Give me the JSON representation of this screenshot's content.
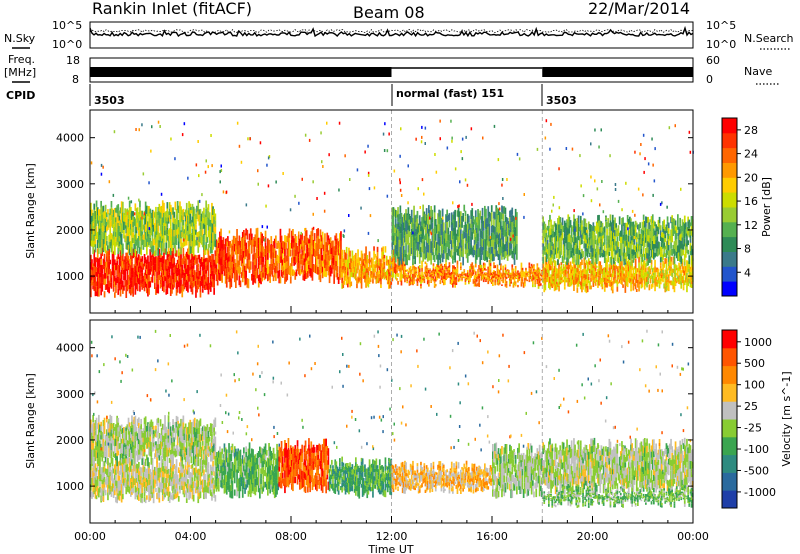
{
  "header": {
    "station": "Rankin Inlet (fitACF)",
    "beam": "Beam 08",
    "date": "22/Mar/2014"
  },
  "panels": {
    "noise": {
      "left_label": "N.Sky",
      "right_label": "N.Search",
      "tick_top": "10^5",
      "tick_bottom": "10^0",
      "right_tick_top": "10^5",
      "right_tick_bottom": "10^0"
    },
    "freq": {
      "left_label_1": "Freq.",
      "left_label_2": "[MHz]",
      "left_tick_top": "18",
      "left_tick_bottom": "8",
      "right_label": "Nave",
      "right_tick_top": "60",
      "right_tick_bottom": "0"
    },
    "cpid": {
      "label": "CPID",
      "segments": [
        {
          "label": "3503",
          "start": 0,
          "end": 12
        },
        {
          "label": "normal (fast) 151",
          "start": 12,
          "end": 18
        },
        {
          "label": "3503",
          "start": 18,
          "end": 24
        }
      ]
    }
  },
  "colorbars": {
    "power": {
      "label": "Power [dB]",
      "ticks": [
        "4",
        "8",
        "12",
        "16",
        "20",
        "24",
        "28"
      ],
      "colors": [
        "#0000ff",
        "#2255cc",
        "#3a7a8a",
        "#2e8b57",
        "#55b050",
        "#99cc33",
        "#ccdd00",
        "#ffcc00",
        "#ff9900",
        "#ff6600",
        "#ff3300",
        "#ff0000"
      ]
    },
    "velocity": {
      "label": "Velocity [m s^-1]",
      "ticks": [
        "1000",
        "500",
        "100",
        "25",
        "-25",
        "-100",
        "-500",
        "-1000"
      ],
      "colors": [
        "#1f3fa8",
        "#2a6a9e",
        "#2e8b80",
        "#3aa550",
        "#88cc33",
        "#c0c0c0",
        "#ffbb22",
        "#ff8800",
        "#ff5500",
        "#ff0000"
      ]
    }
  },
  "chart_data": [
    {
      "type": "heatmap",
      "name_label": "Power",
      "xlabel": "",
      "ylabel": "Slant Range [km]",
      "xlim": [
        0,
        24
      ],
      "ylim": [
        200,
        4600
      ],
      "yticks": [
        "1000",
        "2000",
        "3000",
        "4000"
      ],
      "zlim": [
        0,
        30
      ],
      "bands": [
        {
          "x0": 0.0,
          "x1": 5.0,
          "y0": 600,
          "y1": 1500,
          "val": 27
        },
        {
          "x0": 5.0,
          "x1": 7.0,
          "y0": 800,
          "y1": 1900,
          "val": 25
        },
        {
          "x0": 7.0,
          "x1": 10.0,
          "y0": 900,
          "y1": 1900,
          "val": 24
        },
        {
          "x0": 10.0,
          "x1": 12.5,
          "y0": 800,
          "y1": 1500,
          "val": 21
        },
        {
          "x0": 12.5,
          "x1": 18.0,
          "y0": 800,
          "y1": 1200,
          "val": 22
        },
        {
          "x0": 18.0,
          "x1": 22.0,
          "y0": 700,
          "y1": 1300,
          "val": 20
        },
        {
          "x0": 22.0,
          "x1": 24.0,
          "y0": 700,
          "y1": 1300,
          "val": 18
        },
        {
          "x0": 0.0,
          "x1": 5.0,
          "y0": 1500,
          "y1": 2500,
          "val": 14
        },
        {
          "x0": 12.0,
          "x1": 17.0,
          "y0": 1300,
          "y1": 2400,
          "val": 10
        },
        {
          "x0": 18.0,
          "x1": 24.0,
          "y0": 1300,
          "y1": 2200,
          "val": 12
        }
      ]
    },
    {
      "type": "heatmap",
      "name_label": "Velocity",
      "xlabel": "Time UT",
      "ylabel": "Slant Range [km]",
      "xlim": [
        0,
        24
      ],
      "ylim": [
        200,
        4600
      ],
      "xticks": [
        "00:00",
        "04:00",
        "08:00",
        "12:00",
        "16:00",
        "20:00",
        "00:00"
      ],
      "yticks": [
        "1000",
        "2000",
        "3000",
        "4000"
      ],
      "zlim": [
        -1000,
        1000
      ],
      "bands": [
        {
          "x0": 0.0,
          "x1": 5.0,
          "y0": 700,
          "y1": 1500,
          "val": 80
        },
        {
          "x0": 5.0,
          "x1": 7.5,
          "y0": 800,
          "y1": 1800,
          "val": -200
        },
        {
          "x0": 7.5,
          "x1": 9.5,
          "y0": 900,
          "y1": 1900,
          "val": 700
        },
        {
          "x0": 9.5,
          "x1": 12.0,
          "y0": 800,
          "y1": 1500,
          "val": -300
        },
        {
          "x0": 12.0,
          "x1": 16.0,
          "y0": 900,
          "y1": 1400,
          "val": 300
        },
        {
          "x0": 16.0,
          "x1": 18.0,
          "y0": 800,
          "y1": 1800,
          "val": -20
        },
        {
          "x0": 18.0,
          "x1": 24.0,
          "y0": 900,
          "y1": 1900,
          "val": 10
        },
        {
          "x0": 0.0,
          "x1": 5.0,
          "y0": 1500,
          "y1": 2400,
          "val": 5
        },
        {
          "x0": 18.0,
          "x1": 24.0,
          "y0": 600,
          "y1": 900,
          "val": -150
        }
      ]
    }
  ]
}
